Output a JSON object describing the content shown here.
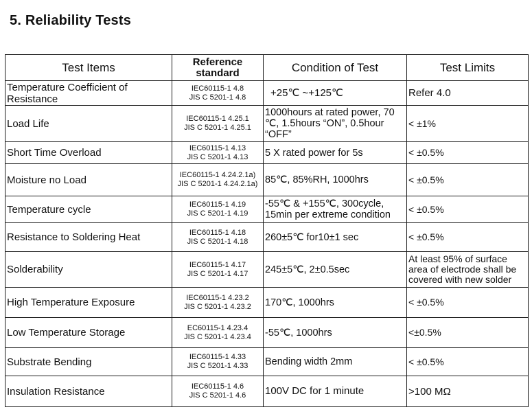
{
  "title": "5. Reliability Tests",
  "headers": {
    "item": "Test Items",
    "reference_line1": "Reference",
    "reference_line2": "standard",
    "condition": "Condition of Test",
    "limits": "Test Limits"
  },
  "rows": [
    {
      "item": "Temperature Coefficient of Resistance",
      "ref1": "IEC60115-1 4.8",
      "ref2": "JIS C 5201-1 4.8",
      "condition": "+25℃ ~+125℃",
      "limit": "Refer 4.0"
    },
    {
      "item": "Load Life",
      "ref1": "IEC60115-1 4.25.1",
      "ref2": "JIS C 5201-1 4.25.1",
      "condition": "1000hours at rated power, 70 ℃, 1.5hours “ON”, 0.5hour “OFF”",
      "limit": "< ±1%"
    },
    {
      "item": "Short Time Overload",
      "ref1": "IEC60115-1 4.13",
      "ref2": "JIS C 5201-1 4.13",
      "condition": "5 X rated power for 5s",
      "limit": "< ±0.5%"
    },
    {
      "item": "Moisture no Load",
      "ref1": "IEC60115-1 4.24.2.1a)",
      "ref2": "JIS C 5201-1 4.24.2.1a)",
      "condition": "85℃, 85%RH, 1000hrs",
      "limit": "< ±0.5%"
    },
    {
      "item": "Temperature cycle",
      "ref1": "IEC60115-1 4.19",
      "ref2": "JIS C 5201-1 4.19",
      "condition": "-55℃ & +155℃, 300cycle, 15min per extreme condition",
      "limit": "< ±0.5%"
    },
    {
      "item": "Resistance to Soldering Heat",
      "ref1": "IEC60115-1 4.18",
      "ref2": "JIS C 5201-1 4.18",
      "condition": "260±5℃ for10±1 sec",
      "limit": "< ±0.5%"
    },
    {
      "item": "Solderability",
      "ref1": "IEC60115-1 4.17",
      "ref2": "JIS C 5201-1 4.17",
      "condition": "245±5℃, 2±0.5sec",
      "limit": "At least 95% of surface area of electrode shall be covered with new solder"
    },
    {
      "item": "High Temperature Exposure",
      "ref1": "IEC60115-1 4.23.2",
      "ref2": "JIS C 5201-1 4.23.2",
      "condition": "170℃, 1000hrs",
      "limit": "< ±0.5%"
    },
    {
      "item": "Low Temperature Storage",
      "ref1": "EC60115-1 4.23.4",
      "ref2": "JIS C 5201-1 4.23.4",
      "condition": "-55℃, 1000hrs",
      "limit": "<±0.5%"
    },
    {
      "item": "Substrate Bending",
      "ref1": "IEC60115-1 4.33",
      "ref2": "JIS C 5201-1 4.33",
      "condition": "Bending width 2mm",
      "limit": "< ±0.5%"
    },
    {
      "item": "Insulation Resistance",
      "ref1": "IEC60115-1 4.6",
      "ref2": "JIS C 5201-1 4.6",
      "condition": "100V DC for 1 minute",
      "limit": ">100 MΩ"
    }
  ]
}
